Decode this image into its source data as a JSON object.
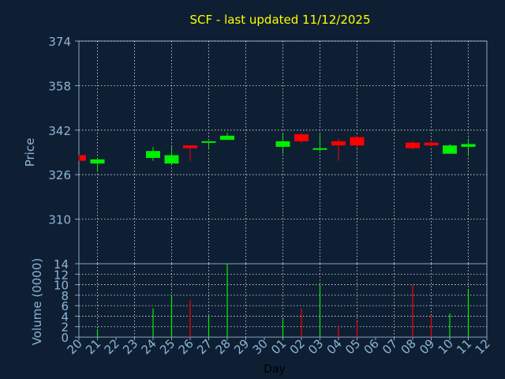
{
  "chart_data": [
    {
      "type": "candlestick",
      "title": "SCF - last updated 11/12/2025",
      "ylabel": "Price",
      "ylim": [
        294,
        374
      ],
      "yticks": [
        374,
        358,
        342,
        326,
        310
      ],
      "grid": true,
      "x": [
        "20",
        "21",
        "22",
        "23",
        "24",
        "25",
        "26",
        "27",
        "28",
        "29",
        "30",
        "01",
        "02",
        "03",
        "04",
        "05",
        "06",
        "07",
        "08",
        "09",
        "10",
        "11",
        "12"
      ],
      "series": [
        {
          "ohlc": [
            {
              "x": "20",
              "open": 333,
              "high": 333,
              "low": 331,
              "close": 331
            },
            {
              "x": "21",
              "open": 330,
              "high": 332,
              "low": 327,
              "close": 331.5
            },
            {
              "x": "24",
              "open": 332,
              "high": 336,
              "low": 331,
              "close": 334.5
            },
            {
              "x": "25",
              "open": 330,
              "high": 336,
              "low": 329.5,
              "close": 333
            },
            {
              "x": "26",
              "open": 336.5,
              "high": 336.5,
              "low": 331,
              "close": 335.5
            },
            {
              "x": "27",
              "open": 337.5,
              "high": 338,
              "low": 335,
              "close": 338
            },
            {
              "x": "28",
              "open": 338.5,
              "high": 341,
              "low": 338.5,
              "close": 340
            },
            {
              "x": "01",
              "open": 336,
              "high": 341,
              "low": 333.5,
              "close": 338
            },
            {
              "x": "02",
              "open": 340.5,
              "high": 341,
              "low": 337.5,
              "close": 338
            },
            {
              "x": "03",
              "open": 335,
              "high": 340.5,
              "low": 334.5,
              "close": 335.5
            },
            {
              "x": "04",
              "open": 338,
              "high": 339,
              "low": 331,
              "close": 336.5
            },
            {
              "x": "05",
              "open": 339.5,
              "high": 340,
              "low": 335.5,
              "close": 336.5
            },
            {
              "x": "08",
              "open": 337.5,
              "high": 338,
              "low": 335,
              "close": 335.5
            },
            {
              "x": "09",
              "open": 337.5,
              "high": 338,
              "low": 336,
              "close": 336.5
            },
            {
              "x": "10",
              "open": 333.5,
              "high": 337,
              "low": 333.5,
              "close": 336.5
            },
            {
              "x": "11",
              "open": 336,
              "high": 339,
              "low": 333,
              "close": 337
            }
          ]
        }
      ],
      "colors": {
        "up": "#00ee00",
        "down": "#ff0000"
      }
    },
    {
      "type": "bar",
      "xlabel": "Day",
      "ylabel": "Volume (0000)",
      "ylim": [
        0,
        14
      ],
      "yticks": [
        0,
        2,
        4,
        6,
        8,
        10,
        12,
        14
      ],
      "grid": true,
      "categories": [
        "20",
        "21",
        "22",
        "23",
        "24",
        "25",
        "26",
        "27",
        "28",
        "29",
        "30",
        "01",
        "02",
        "03",
        "04",
        "05",
        "06",
        "07",
        "08",
        "09",
        "10",
        "11",
        "12"
      ],
      "bars": [
        {
          "x": "21",
          "value": 1.5,
          "direction": "up"
        },
        {
          "x": "24",
          "value": 5.5,
          "direction": "up"
        },
        {
          "x": "25",
          "value": 8,
          "direction": "up"
        },
        {
          "x": "26",
          "value": 7,
          "direction": "down"
        },
        {
          "x": "27",
          "value": 4,
          "direction": "up"
        },
        {
          "x": "28",
          "value": 14,
          "direction": "up"
        },
        {
          "x": "01",
          "value": 3.5,
          "direction": "up"
        },
        {
          "x": "02",
          "value": 5.5,
          "direction": "down"
        },
        {
          "x": "03",
          "value": 10,
          "direction": "up"
        },
        {
          "x": "04",
          "value": 2,
          "direction": "down"
        },
        {
          "x": "05",
          "value": 3,
          "direction": "down"
        },
        {
          "x": "08",
          "value": 10,
          "direction": "down"
        },
        {
          "x": "09",
          "value": 4,
          "direction": "down"
        },
        {
          "x": "10",
          "value": 4.5,
          "direction": "up"
        },
        {
          "x": "11",
          "value": 9,
          "direction": "up"
        }
      ]
    }
  ]
}
